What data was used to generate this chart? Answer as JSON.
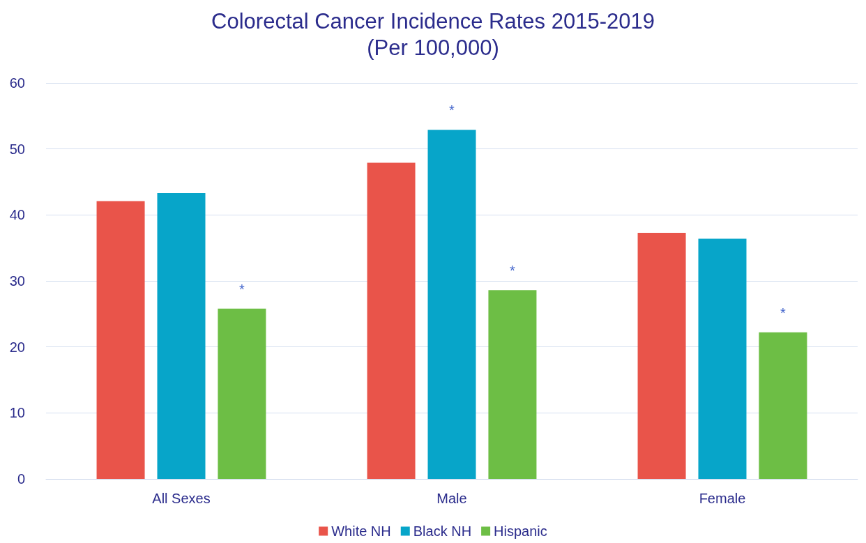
{
  "chart_data": {
    "type": "bar",
    "title": "Colorectal Cancer Incidence Rates 2015-2019\n(Per 100,000)",
    "categories": [
      "All Sexes",
      "Male",
      "Female"
    ],
    "series": [
      {
        "name": "White NH",
        "color": "#e9544a",
        "values": [
          42.1,
          47.9,
          37.3
        ]
      },
      {
        "name": "Black NH",
        "color": "#07a5c9",
        "values": [
          43.3,
          52.9,
          36.4
        ],
        "value_labels": [
          null,
          "*",
          null
        ]
      },
      {
        "name": "Hispanic",
        "color": "#6dbe45",
        "values": [
          25.8,
          28.6,
          22.2
        ],
        "value_labels": [
          "*",
          "*",
          "*"
        ]
      }
    ],
    "ylim": [
      0,
      60
    ],
    "yticks": [
      0,
      10,
      20,
      30,
      40,
      50,
      60
    ],
    "grid": true,
    "legend": "bottom"
  }
}
